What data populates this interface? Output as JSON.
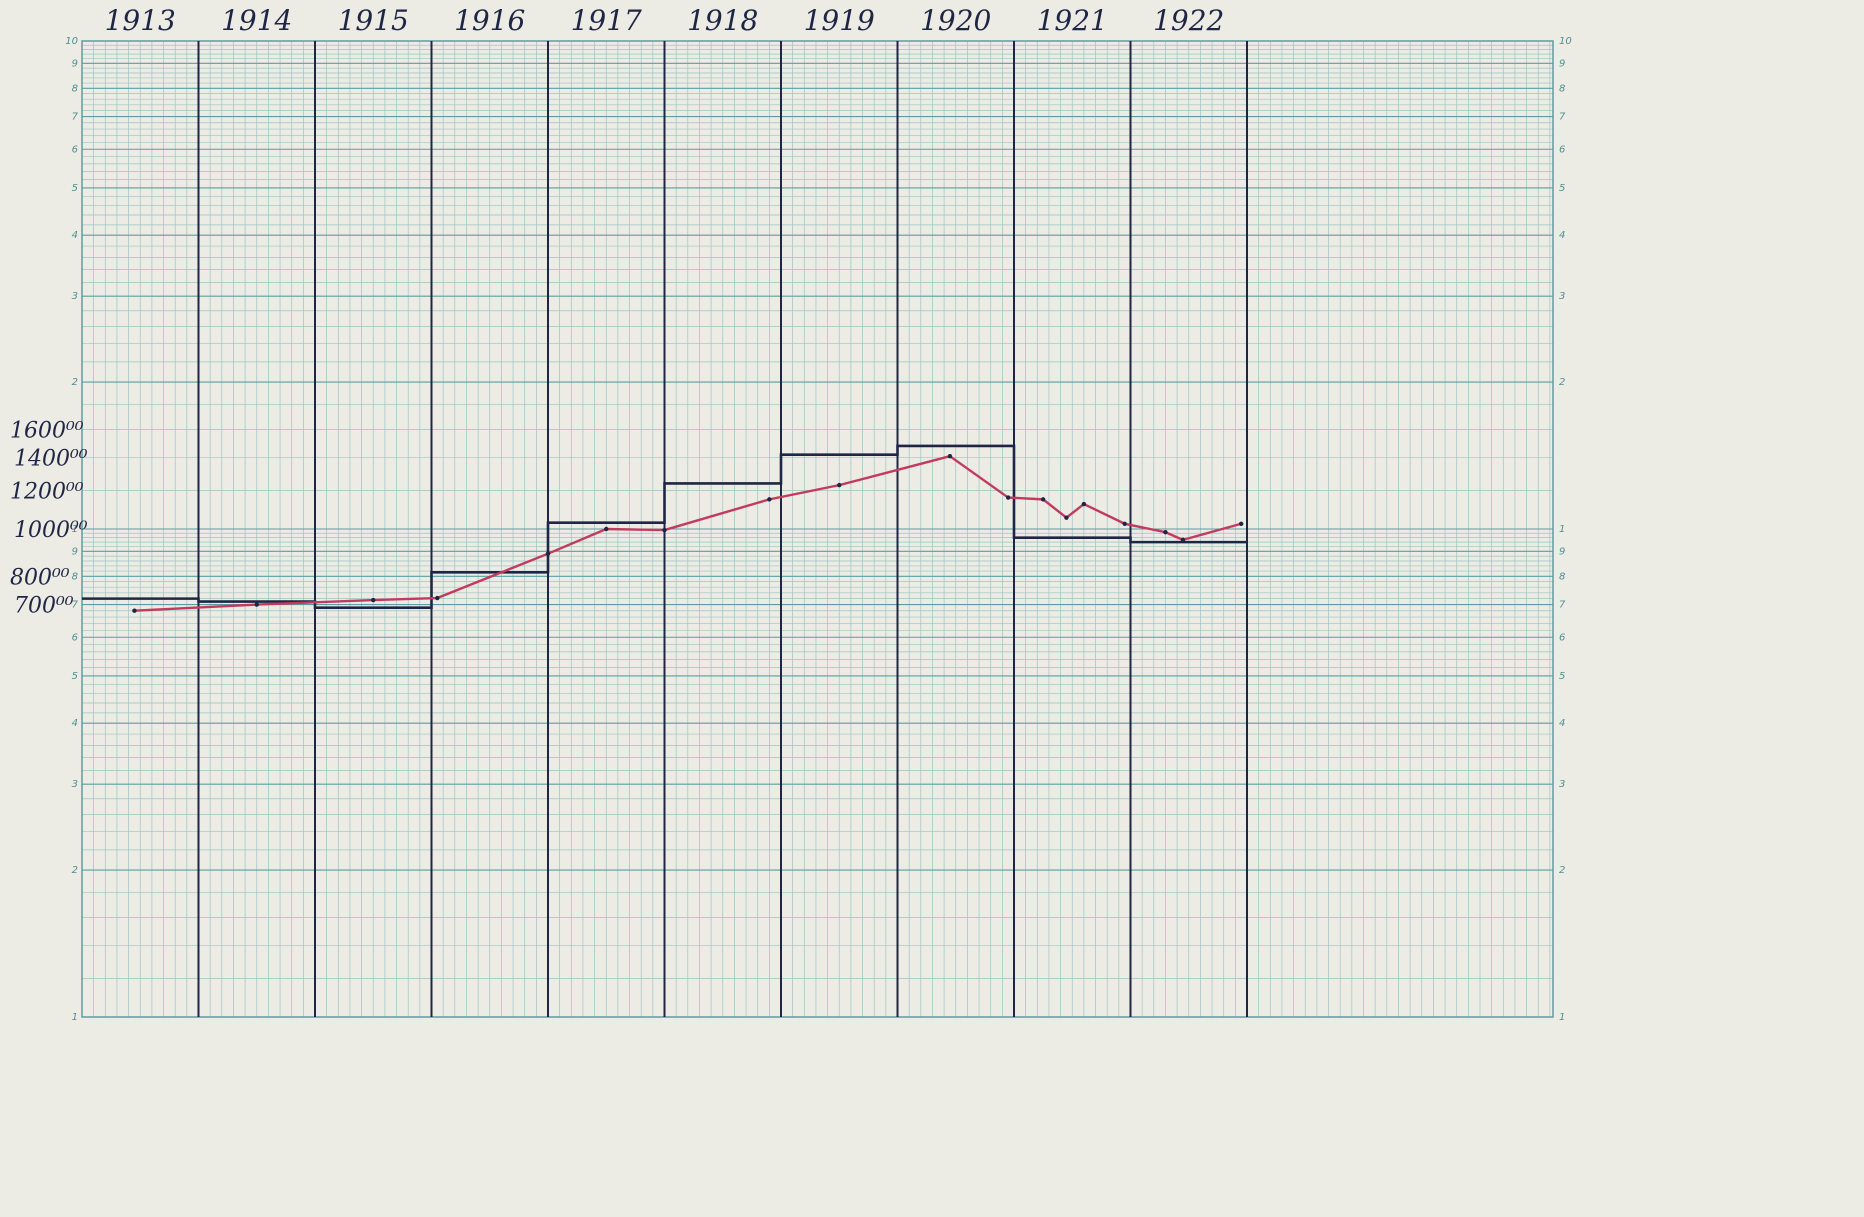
{
  "colors": {
    "paper": "#ecebe4",
    "grid_fine": "#9cc5c5",
    "grid_major": "#5b9ea0",
    "ink": "#1f2544",
    "red": "#c23a5e"
  },
  "chart_data": {
    "type": "line",
    "title": "",
    "xlabel": "",
    "ylabel": "",
    "scale": "log",
    "x_range": [
      1913,
      1923
    ],
    "y_range": [
      100,
      10000
    ],
    "grid": true,
    "years": [
      "1913",
      "1914",
      "1915",
      "1916",
      "1917",
      "1918",
      "1919",
      "1920",
      "1921",
      "1922"
    ],
    "value_labels": [
      "1600⁰⁰",
      "1400⁰⁰",
      "1200⁰⁰",
      "1000⁰⁰",
      "800⁰⁰",
      "700⁰⁰"
    ],
    "value_label_values": [
      1600,
      1400,
      1200,
      1000,
      800,
      700
    ],
    "log_ticks": [
      "10",
      "9",
      "8",
      "7",
      "6",
      "5",
      "4",
      "3",
      "2",
      "1",
      "9",
      "8",
      "7",
      "6",
      "5",
      "4",
      "3",
      "2",
      "1"
    ],
    "log_tick_values": [
      10000,
      9000,
      8000,
      7000,
      6000,
      5000,
      4000,
      3000,
      2000,
      1000,
      900,
      800,
      700,
      600,
      500,
      400,
      300,
      200,
      100
    ],
    "series": [
      {
        "style": "step",
        "color": "#1f2544",
        "x": [
          1913,
          1914,
          1915,
          1916,
          1917,
          1918,
          1919,
          1920,
          1921,
          1922
        ],
        "values": [
          720,
          710,
          690,
          815,
          1030,
          1240,
          1420,
          1480,
          960,
          940
        ]
      },
      {
        "style": "line",
        "color": "#c23a5e",
        "x": [
          1913.45,
          1914.5,
          1915.5,
          1916.05,
          1917.0,
          1917.5,
          1918.0,
          1918.9,
          1919.5,
          1920.45,
          1920.95,
          1921.25,
          1921.45,
          1921.6,
          1921.95,
          1922.3,
          1922.45,
          1922.95
        ],
        "values": [
          680,
          700,
          715,
          722,
          890,
          1000,
          995,
          1150,
          1230,
          1410,
          1160,
          1150,
          1055,
          1125,
          1025,
          985,
          950,
          1025
        ]
      }
    ]
  }
}
